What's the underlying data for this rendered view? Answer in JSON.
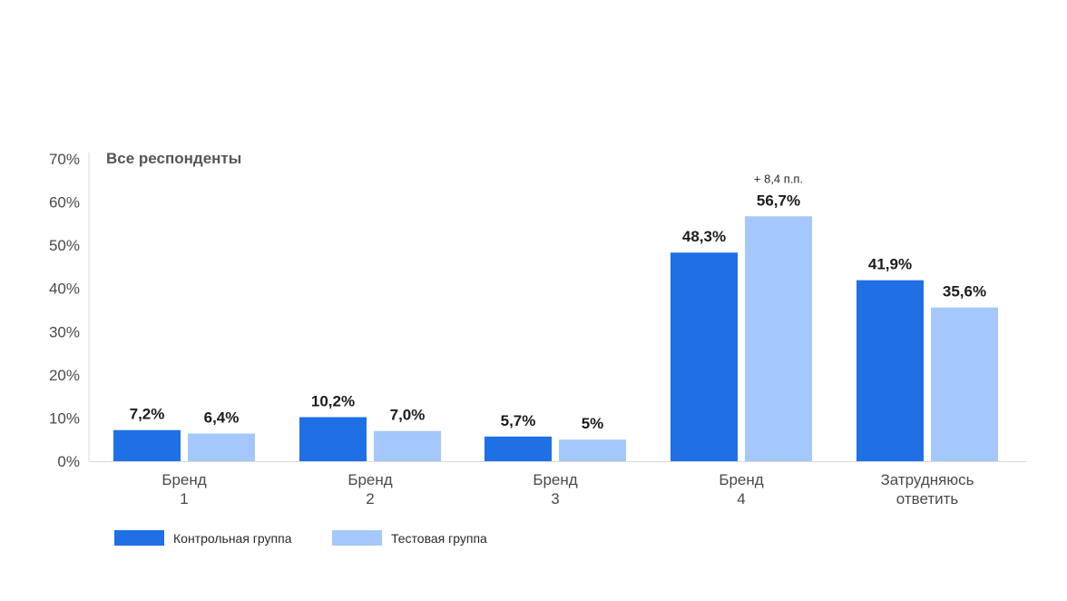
{
  "chart_data": {
    "type": "bar",
    "title": "Все респонденты",
    "categories": [
      "Бренд 1",
      "Бренд 2",
      "Бренд 3",
      "Бренд 4",
      "Затрудняюсь ответить"
    ],
    "series": [
      {
        "name": "Контрольная группа",
        "color": "#1f6fe5",
        "values": [
          7.2,
          10.2,
          5.7,
          48.3,
          41.9
        ],
        "labels": [
          "7,2%",
          "10,2%",
          "5,7%",
          "48,3%",
          "41,9%"
        ]
      },
      {
        "name": "Тестовая группа",
        "color": "#a4c8fb",
        "values": [
          6.4,
          7.0,
          5.0,
          56.7,
          35.6
        ],
        "labels": [
          "6,4%",
          "7,0%",
          "5%",
          "56,7%",
          "35,6%"
        ]
      }
    ],
    "ylim": [
      0,
      70
    ],
    "yticks": [
      "0%",
      "10%",
      "20%",
      "30%",
      "40%",
      "50%",
      "60%",
      "70%"
    ],
    "ytick_values": [
      0,
      10,
      20,
      30,
      40,
      50,
      60,
      70
    ],
    "annotations": [
      {
        "category": "Бренд 4",
        "series": "Тестовая группа",
        "text": "+ 8,4 п.п."
      }
    ],
    "grid": false,
    "legend_position": "bottom-left"
  }
}
